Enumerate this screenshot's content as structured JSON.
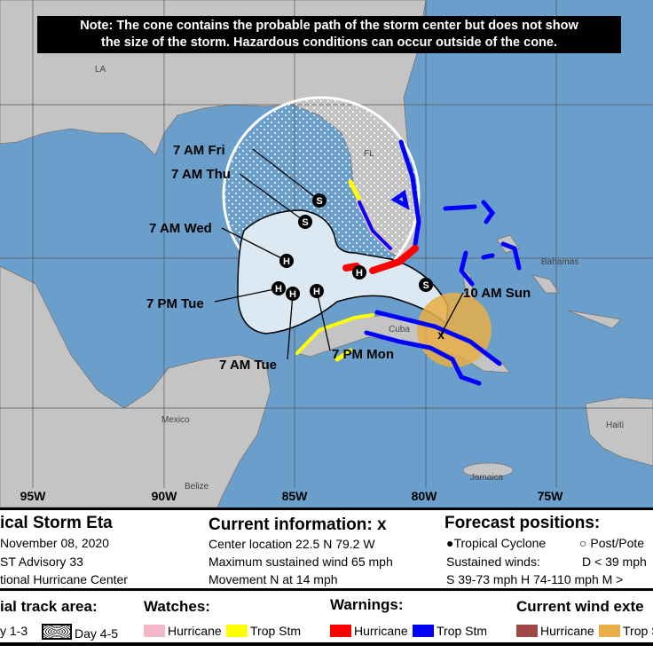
{
  "note": {
    "line1": "Note: The cone contains the probable path of the storm center but does not show",
    "line2": "the size of the storm. Hazardous conditions can occur outside of the cone."
  },
  "map": {
    "place_labels": {
      "la": "LA",
      "fl": "FL",
      "bahamas": "Bahamas",
      "cuba": "Cuba",
      "mexico": "Mexico",
      "belize": "Belize",
      "haiti": "Haiti",
      "jamaica": "Jamaica"
    },
    "longitude_labels": [
      "95W",
      "90W",
      "85W",
      "80W",
      "75W"
    ],
    "forecast_points": [
      {
        "time": "10 AM Sun",
        "intensity": "current"
      },
      {
        "time": "7 PM Mon",
        "intensity": "H"
      },
      {
        "time": "7 AM Tue",
        "intensity": "H"
      },
      {
        "time": "7 PM Tue",
        "intensity": "H"
      },
      {
        "time": "7 AM Wed",
        "intensity": "H"
      },
      {
        "time": "7 AM Thu",
        "intensity": "S"
      },
      {
        "time": "7 AM Fri",
        "intensity": "S"
      }
    ],
    "other_point_symbols": [
      "H",
      "S"
    ],
    "colors": {
      "ocean": "#6a9ecb",
      "land": "#c4c4c4",
      "cone": "#dce8f2",
      "hurricane_warning": "#ff0000",
      "trop_storm_warning": "#0000ff",
      "hurricane_watch": "#f4b8c8",
      "trop_storm_watch": "#ffff00",
      "trop_storm_wind": "#e8ae45",
      "hurricane_wind": "#a04848"
    }
  },
  "info": {
    "storm_title": "ical Storm Eta",
    "date": "November 08, 2020",
    "advisory": "ST Advisory 33",
    "center": "tional Hurricane Center",
    "current_title": "Current information:",
    "current_marker": "x",
    "location": "Center location 22.5 N 79.2 W",
    "wind": "Maximum sustained wind 65 mph",
    "movement": "Movement N at 14 mph",
    "forecast_title": "Forecast positions:",
    "tc_label": "Tropical Cyclone",
    "post_label": "Post/Pote",
    "sustained": "Sustained winds:",
    "d_label": "D < 39 mph",
    "s_h_label": "S 39-73 mph  H 74-110 mph  M >"
  },
  "legend": {
    "track_title": "ial track area:",
    "day13": "y 1-3",
    "day45": "Day 4-5",
    "watches_title": "Watches:",
    "watch_hurricane": "Hurricane",
    "watch_ts": "Trop Stm",
    "warnings_title": "Warnings:",
    "warn_hurricane": "Hurricane",
    "warn_ts": "Trop Stm",
    "wind_title": "Current wind exte",
    "wind_hurricane": "Hurricane",
    "wind_ts": "Trop S"
  }
}
